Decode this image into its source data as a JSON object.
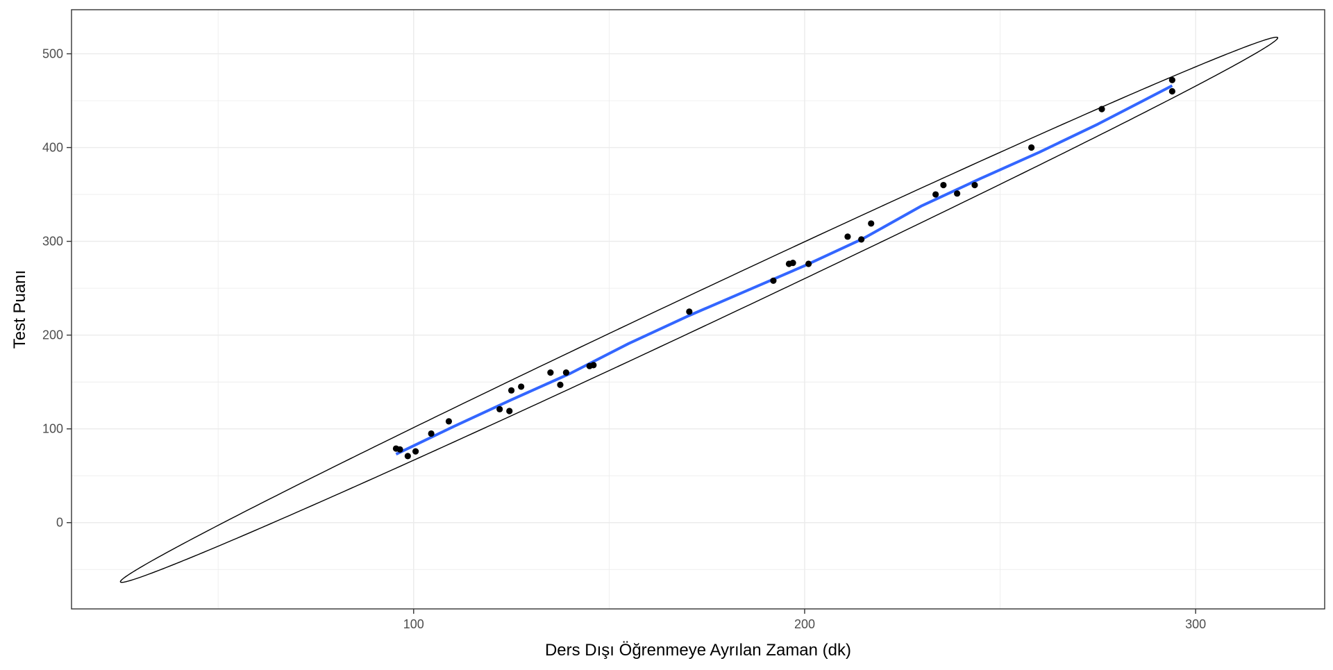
{
  "chart_data": {
    "type": "scatter",
    "title": "",
    "xlabel": "Ders Dışı Öğrenmeye Ayrılan Zaman (dk)",
    "ylabel": "Test Puanı",
    "xlim": [
      12.5,
      333
    ],
    "ylim": [
      -92,
      547
    ],
    "x_ticks": [
      100,
      200,
      300
    ],
    "x_tick_labels": [
      "100",
      "200",
      "300"
    ],
    "y_ticks": [
      0,
      100,
      200,
      300,
      400,
      500
    ],
    "y_tick_labels": [
      "0",
      "100",
      "200",
      "300",
      "400",
      "500"
    ],
    "grid": true,
    "legend": "none",
    "colors": {
      "points": "#000000",
      "smooth": "#3366FF",
      "ellipse": "#000000",
      "grid": "#ebebeb",
      "panel_border": "#333333"
    },
    "points": [
      {
        "x": 95.5,
        "y": 79
      },
      {
        "x": 96.5,
        "y": 78
      },
      {
        "x": 98.5,
        "y": 71
      },
      {
        "x": 100.5,
        "y": 76
      },
      {
        "x": 104.5,
        "y": 95
      },
      {
        "x": 109,
        "y": 108
      },
      {
        "x": 122,
        "y": 121
      },
      {
        "x": 124.5,
        "y": 119
      },
      {
        "x": 125,
        "y": 141
      },
      {
        "x": 127.5,
        "y": 145
      },
      {
        "x": 135,
        "y": 160
      },
      {
        "x": 137.5,
        "y": 147
      },
      {
        "x": 139,
        "y": 160
      },
      {
        "x": 145,
        "y": 167
      },
      {
        "x": 146,
        "y": 168
      },
      {
        "x": 170.5,
        "y": 225
      },
      {
        "x": 192,
        "y": 258
      },
      {
        "x": 196,
        "y": 276
      },
      {
        "x": 197,
        "y": 277
      },
      {
        "x": 201,
        "y": 276
      },
      {
        "x": 211,
        "y": 305
      },
      {
        "x": 214.5,
        "y": 302
      },
      {
        "x": 217,
        "y": 319
      },
      {
        "x": 233.5,
        "y": 350
      },
      {
        "x": 235.5,
        "y": 360
      },
      {
        "x": 239,
        "y": 351
      },
      {
        "x": 243.5,
        "y": 360
      },
      {
        "x": 258,
        "y": 400
      },
      {
        "x": 276,
        "y": 441
      },
      {
        "x": 294,
        "y": 472
      },
      {
        "x": 294,
        "y": 460
      }
    ],
    "smooth_line": {
      "x": [
        95.5,
        110,
        125,
        140,
        155,
        170,
        185,
        200,
        215,
        230,
        245,
        260,
        275,
        294
      ],
      "y": [
        73,
        102,
        131,
        159,
        191,
        220,
        247,
        274,
        303,
        338,
        367,
        395,
        425,
        466
      ]
    },
    "ellipse": {
      "center": [
        173,
        227
      ],
      "half_axis_tip": [
        148,
        290
      ],
      "half_axis_width": [
        0,
        20
      ]
    }
  }
}
